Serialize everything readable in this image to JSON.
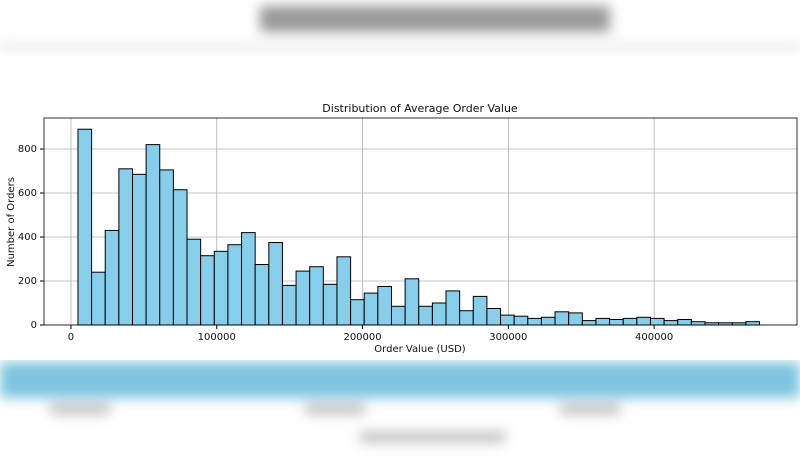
{
  "chart_data": {
    "type": "histogram",
    "title": "Distribution of Average Order Value",
    "x_label": "Order Value (USD)",
    "y_label": "Number of Orders",
    "bins": [
      4800,
      14150,
      23500,
      32850,
      42200,
      51550,
      60900,
      70250,
      79600,
      88950,
      98300,
      107650,
      117000,
      126350,
      135700,
      145050,
      154400,
      163750,
      173100,
      182450,
      191800,
      201150,
      210500,
      219850,
      229200,
      238550,
      247900,
      257250,
      266600,
      275950,
      285300,
      294650,
      304000,
      313350,
      322700,
      332050,
      341400,
      350750,
      360100,
      369450,
      378800,
      388150,
      397500,
      406850,
      416200,
      425550,
      434900,
      444250,
      453600,
      462950,
      472300
    ],
    "values": [
      890,
      240,
      430,
      710,
      685,
      820,
      705,
      615,
      390,
      315,
      335,
      365,
      420,
      275,
      375,
      180,
      245,
      265,
      185,
      310,
      115,
      145,
      175,
      85,
      210,
      85,
      100,
      155,
      65,
      130,
      75,
      45,
      40,
      30,
      35,
      60,
      55,
      20,
      30,
      25,
      30,
      35,
      30,
      20,
      25,
      15,
      10,
      10,
      10,
      15
    ],
    "color": "#87ceeb",
    "edge_color": "#000000",
    "xlim": [
      -18500,
      498000
    ],
    "ylim": [
      0,
      941
    ],
    "xticks": [
      0,
      100000,
      200000,
      300000,
      400000
    ],
    "yticks": [
      0,
      200,
      400,
      600,
      800
    ],
    "grid": true
  }
}
